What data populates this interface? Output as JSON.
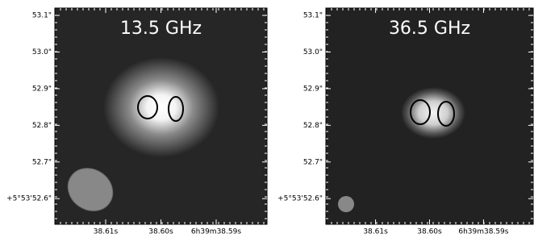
{
  "chart_data": [
    {
      "type": "image",
      "title": "13.5 GHz",
      "xlim": [
        38.6192,
        38.5808
      ],
      "ylim": [
        52.53,
        53.12
      ],
      "xticks": [
        {
          "value": 38.61,
          "label": "38.61s"
        },
        {
          "value": 38.6,
          "label": "38.60s"
        },
        {
          "value": 38.59,
          "label": "6h39m38.59s"
        }
      ],
      "yticks": [
        {
          "value": 52.6,
          "label": "+5°53'52.6\""
        },
        {
          "value": 52.7,
          "label": "52.7\""
        },
        {
          "value": 52.8,
          "label": "52.8\""
        },
        {
          "value": 52.9,
          "label": "52.9\""
        },
        {
          "value": 53.0,
          "label": "53.0\""
        },
        {
          "value": 53.1,
          "label": "53.1\""
        }
      ]
    },
    {
      "type": "image",
      "title": "36.5 GHz",
      "xlim": [
        38.6192,
        38.5808
      ],
      "ylim": [
        52.53,
        53.12
      ],
      "xticks": [
        {
          "value": 38.61,
          "label": "38.61s"
        },
        {
          "value": 38.6,
          "label": "38.60s"
        },
        {
          "value": 38.59,
          "label": "6h39m38.59s"
        }
      ],
      "yticks": [
        {
          "value": 52.6,
          "label": "+5°53'52.6\""
        },
        {
          "value": 52.7,
          "label": "52.7\""
        },
        {
          "value": 52.8,
          "label": "52.8\""
        },
        {
          "value": 52.9,
          "label": "52.9\""
        },
        {
          "value": 53.0,
          "label": "53.0\""
        },
        {
          "value": 53.1,
          "label": "53.1\""
        }
      ]
    }
  ]
}
